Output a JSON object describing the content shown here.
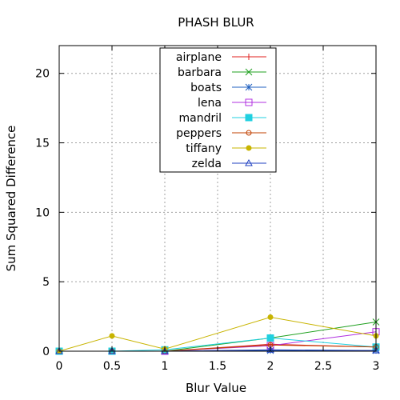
{
  "chart_data": {
    "type": "line",
    "title": "PHASH BLUR",
    "xlabel": "Blur Value",
    "ylabel": "Sum Squared Difference",
    "x": [
      0,
      0.5,
      1,
      2,
      3
    ],
    "xlim": [
      0,
      3
    ],
    "ylim": [
      0,
      22
    ],
    "xticks": [
      0,
      0.5,
      1,
      1.5,
      2,
      2.5,
      3
    ],
    "xtick_labels": [
      "0",
      "0.5",
      "1",
      "1.5",
      "2",
      "2.5",
      "3"
    ],
    "yticks": [
      0,
      5,
      10,
      15,
      20
    ],
    "ytick_labels": [
      "0",
      "5",
      "10",
      "15",
      "20"
    ],
    "grid": true,
    "legend_position": "top-center",
    "series": [
      {
        "name": "airplane",
        "color": "#e0201f",
        "marker": "plus",
        "values": [
          0,
          0,
          0,
          0.5,
          0.3
        ]
      },
      {
        "name": "barbara",
        "color": "#20a020",
        "marker": "cross",
        "values": [
          0,
          0,
          0,
          0.95,
          2.1
        ]
      },
      {
        "name": "boats",
        "color": "#2060c0",
        "marker": "star",
        "values": [
          0,
          0,
          0,
          0.05,
          0.05
        ]
      },
      {
        "name": "lena",
        "color": "#b030e0",
        "marker": "square",
        "values": [
          0,
          0,
          0,
          0.4,
          1.4
        ]
      },
      {
        "name": "mandril",
        "color": "#20d0e0",
        "marker": "filled-square",
        "values": [
          0,
          0,
          0.1,
          0.95,
          0.3
        ]
      },
      {
        "name": "peppers",
        "color": "#c04000",
        "marker": "circle",
        "values": [
          0,
          0,
          0,
          0.45,
          0.3
        ]
      },
      {
        "name": "tiffany",
        "color": "#c8b400",
        "marker": "filled-circle",
        "values": [
          0,
          1.1,
          0.15,
          2.45,
          1.1
        ]
      },
      {
        "name": "zelda",
        "color": "#2040c0",
        "marker": "triangle",
        "values": [
          0,
          0,
          0,
          0.1,
          0.05
        ]
      }
    ]
  }
}
